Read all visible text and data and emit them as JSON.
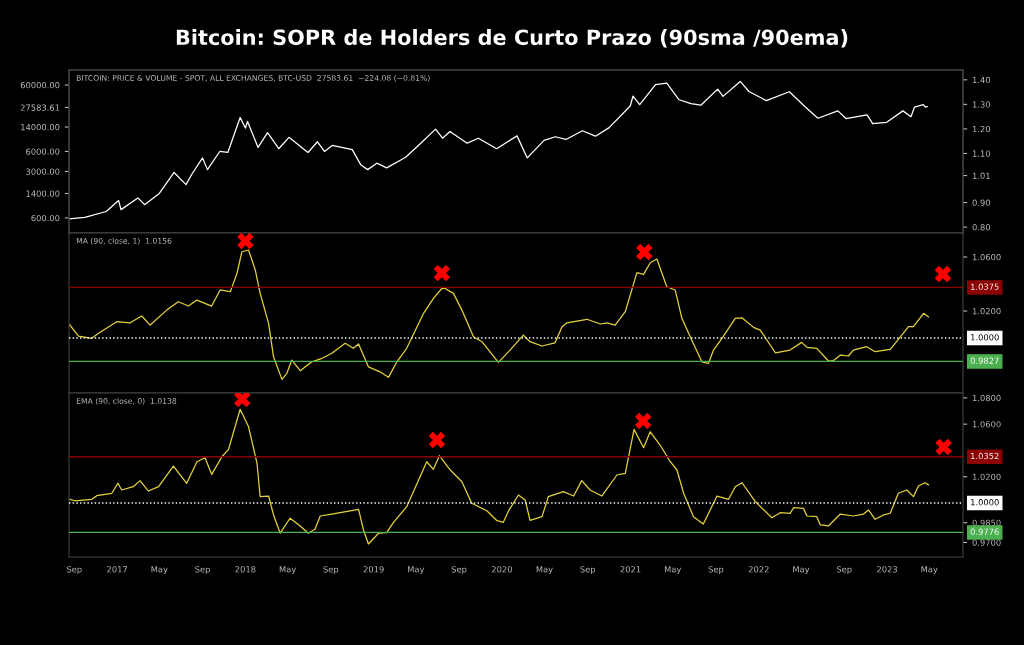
{
  "chart_data": [
    {
      "type": "line",
      "title": "Bitcoin: SOPR de Holders de Curto Prazo (90sma /90ema)",
      "annotations": [
        "BITCOIN: PRICE & VOLUME - SPOT, ALL EXCHANGES, BTC-USD  27583.61  −224.08 (−0.81%)"
      ],
      "log": true,
      "tick_labels": "y",
      "xlim": [
        "2016-08-17",
        "2023-08-05"
      ],
      "ylim": [
        356,
        101000
      ],
      "yticks": [
        {
          "value": 600,
          "label": "600.00"
        },
        {
          "value": 1400,
          "label": "1400.00"
        },
        {
          "value": 3000,
          "label": "3000.00"
        },
        {
          "value": 6000,
          "label": "6000.00"
        },
        {
          "value": 14000,
          "label": "14000.00"
        },
        {
          "value": 27583.61,
          "label": "27583.61"
        },
        {
          "value": 60000,
          "label": "60000.00"
        }
      ],
      "y2lim": [
        0.776,
        1.44
      ],
      "y2ticks": [
        {
          "value": 0.8,
          "label": "0.80"
        },
        {
          "value": 0.9,
          "label": "0.90"
        },
        {
          "value": 1.01,
          "label": "1.01"
        },
        {
          "value": 1.1,
          "label": "1.10"
        },
        {
          "value": 1.2,
          "label": "1.20"
        },
        {
          "value": 1.3,
          "label": "1.30"
        },
        {
          "value": 1.4,
          "label": "1.40"
        }
      ],
      "series": [
        {
          "color": "#ffffff",
          "x": [
            "2016-08-17",
            "2016-10-01",
            "2016-12-01",
            "2017-01-05",
            "2017-01-12",
            "2017-03-01",
            "2017-03-20",
            "2017-05-01",
            "2017-06-12",
            "2017-07-16",
            "2017-08-01",
            "2017-09-01",
            "2017-09-15",
            "2017-10-20",
            "2017-11-12",
            "2017-12-17",
            "2018-01-01",
            "2018-01-07",
            "2018-02-06",
            "2018-03-05",
            "2018-04-06",
            "2018-05-05",
            "2018-06-28",
            "2018-07-25",
            "2018-08-14",
            "2018-09-05",
            "2018-11-01",
            "2018-11-25",
            "2018-12-15",
            "2019-01-10",
            "2019-02-07",
            "2019-04-02",
            "2019-05-15",
            "2019-06-26",
            "2019-07-16",
            "2019-08-06",
            "2019-09-24",
            "2019-10-26",
            "2019-12-17",
            "2020-02-13",
            "2020-03-13",
            "2020-04-30",
            "2020-06-01",
            "2020-07-01",
            "2020-08-17",
            "2020-09-23",
            "2020-11-01",
            "2020-12-31",
            "2021-01-08",
            "2021-01-27",
            "2021-03-13",
            "2021-04-14",
            "2021-05-19",
            "2021-06-22",
            "2021-07-20",
            "2021-09-06",
            "2021-09-21",
            "2021-11-09",
            "2021-12-04",
            "2022-01-22",
            "2022-03-29",
            "2022-05-12",
            "2022-06-18",
            "2022-08-14",
            "2022-09-06",
            "2022-11-05",
            "2022-11-21",
            "2022-12-31",
            "2023-02-15",
            "2023-03-10",
            "2023-03-20",
            "2023-04-14",
            "2023-04-20",
            "2023-04-26"
          ],
          "values": [
            580,
            610,
            750,
            1100,
            800,
            1200,
            950,
            1400,
            2900,
            1900,
            2700,
            4800,
            3200,
            6000,
            5800,
            19500,
            13500,
            17000,
            6900,
            11500,
            6600,
            9800,
            5800,
            8400,
            6000,
            7400,
            6400,
            3800,
            3200,
            4000,
            3400,
            4900,
            8000,
            13000,
            9500,
            12000,
            8000,
            9500,
            6600,
            10300,
            4800,
            8800,
            10000,
            9100,
            12300,
            10200,
            13700,
            29000,
            41000,
            30500,
            61000,
            64000,
            36000,
            31500,
            29800,
            52000,
            40500,
            68000,
            48000,
            35000,
            47500,
            28500,
            19000,
            24500,
            18800,
            21300,
            15800,
            16500,
            24500,
            20000,
            28000,
            30500,
            28000,
            28500
          ]
        }
      ]
    },
    {
      "type": "line",
      "annotations": [
        "MA (90, close, 1)  1.0156"
      ],
      "tick_labels": "y",
      "xlim": [
        "2016-08-17",
        "2023-08-05"
      ],
      "ylim": [
        0.9593,
        1.0778
      ],
      "yticks": [
        {
          "value": 1.02,
          "label": "1.0200"
        },
        {
          "value": 1.06,
          "label": "1.0600"
        }
      ],
      "ref_lines": [
        {
          "axis": "y",
          "value": 1.0375,
          "label": "1.0375",
          "color": "#8b0000",
          "line_style": "solid"
        },
        {
          "axis": "y",
          "value": 1.0,
          "label": "1.0000",
          "color": "#ffffff",
          "line_style": "dotted"
        },
        {
          "axis": "y",
          "value": 0.9827,
          "label": "0.9827",
          "color": "#4caf50",
          "line_style": "solid"
        }
      ],
      "series": [
        {
          "color": "#e3d23a",
          "x": [
            "2016-08-18",
            "2016-09-13",
            "2016-10-21",
            "2016-11-09",
            "2016-12-31",
            "2017-02-07",
            "2017-03-12",
            "2017-04-05",
            "2017-05-22",
            "2017-06-24",
            "2017-07-23",
            "2017-08-16",
            "2017-09-27",
            "2017-10-21",
            "2017-11-19",
            "2017-12-08",
            "2017-12-22",
            "2018-01-10",
            "2018-01-29",
            "2018-02-12",
            "2018-03-08",
            "2018-03-22",
            "2018-04-15",
            "2018-04-29",
            "2018-05-13",
            "2018-06-06",
            "2018-07-09",
            "2018-08-07",
            "2018-09-04",
            "2018-10-12",
            "2018-11-04",
            "2018-11-19",
            "2018-12-17",
            "2019-01-19",
            "2019-02-12",
            "2019-03-08",
            "2019-04-05",
            "2019-05-23",
            "2019-06-20",
            "2019-07-17",
            "2019-08-16",
            "2019-09-09",
            "2019-10-12",
            "2019-11-05",
            "2019-12-22",
            "2020-01-24",
            "2020-03-02",
            "2020-03-21",
            "2020-04-24",
            "2020-05-31",
            "2020-06-20",
            "2020-07-04",
            "2020-08-30",
            "2020-10-07",
            "2020-10-26",
            "2020-11-18",
            "2020-12-17",
            "2021-01-19",
            "2021-02-07",
            "2021-02-26",
            "2021-03-17",
            "2021-04-14",
            "2021-05-08",
            "2021-05-27",
            "2021-06-24",
            "2021-07-23",
            "2021-08-11",
            "2021-08-25",
            "2021-09-18",
            "2021-10-26",
            "2021-11-14",
            "2021-12-17",
            "2022-01-05",
            "2022-02-17",
            "2022-03-31",
            "2022-05-03",
            "2022-05-18",
            "2022-06-15",
            "2022-07-18",
            "2022-08-01",
            "2022-08-21",
            "2022-09-13",
            "2022-09-27",
            "2022-11-04",
            "2022-11-28",
            "2023-01-10",
            "2023-02-02",
            "2023-03-03",
            "2023-03-17",
            "2023-04-15",
            "2023-04-29"
          ],
          "values": [
            1.0101,
            1.0015,
            0.9998,
            1.0035,
            1.0121,
            1.0113,
            1.0163,
            1.0096,
            1.0207,
            1.0269,
            1.0237,
            1.0281,
            1.0237,
            1.0356,
            1.0343,
            1.0479,
            1.0639,
            1.0652,
            1.0504,
            1.0331,
            1.0109,
            0.9861,
            0.9694,
            0.9739,
            0.9837,
            0.9758,
            0.9824,
            0.985,
            0.9887,
            0.9961,
            0.9924,
            0.9956,
            0.9787,
            0.975,
            0.9709,
            0.9824,
            0.9924,
            1.0183,
            1.0294,
            1.0376,
            1.0331,
            1.0207,
            1.001,
            0.9973,
            0.982,
            0.9911,
            1.0022,
            0.9973,
            0.9941,
            0.9965,
            1.0084,
            1.0113,
            1.0139,
            1.0104,
            1.0113,
            1.0096,
            1.0195,
            1.0484,
            1.0472,
            1.0558,
            1.0585,
            1.038,
            1.0356,
            1.0146,
            0.9985,
            0.9824,
            0.9813,
            0.9911,
            0.9998,
            1.0146,
            1.015,
            1.0079,
            1.0059,
            0.9891,
            0.9911,
            0.9968,
            0.9931,
            0.9924,
            0.983,
            0.9832,
            0.9874,
            0.9867,
            0.9911,
            0.9936,
            0.9899,
            0.9916,
            0.999,
            1.0084,
            1.0084,
            1.0183,
            1.0156
          ]
        },
        {
          "type": "scatter",
          "color": "#ff0000",
          "marker": "cross",
          "x": [
            "2018-01-01",
            "2019-07-14",
            "2021-02-09",
            "2023-06-09"
          ],
          "values": [
            1.0719,
            1.0481,
            1.0637,
            1.0474
          ]
        }
      ]
    },
    {
      "type": "line",
      "annotations": [
        "EMA (90, close, 0)  1.0138"
      ],
      "xlim": [
        "2016-08-17",
        "2023-08-05"
      ],
      "ylim": [
        0.9589,
        1.0837
      ],
      "yticks": [
        {
          "value": 0.97,
          "label": "0.9700"
        },
        {
          "value": 0.985,
          "label": "0.9850"
        },
        {
          "value": 1.02,
          "label": "1.0200"
        },
        {
          "value": 1.06,
          "label": "1.0600"
        },
        {
          "value": 1.08,
          "label": "1.0800"
        }
      ],
      "xticks": [
        {
          "value": "2016-09-01",
          "label": "Sep"
        },
        {
          "value": "2017-01-01",
          "label": "2017"
        },
        {
          "value": "2017-05-01",
          "label": "May"
        },
        {
          "value": "2017-09-01",
          "label": "Sep"
        },
        {
          "value": "2018-01-01",
          "label": "2018"
        },
        {
          "value": "2018-05-01",
          "label": "May"
        },
        {
          "value": "2018-09-01",
          "label": "Sep"
        },
        {
          "value": "2019-01-01",
          "label": "2019"
        },
        {
          "value": "2019-05-01",
          "label": "May"
        },
        {
          "value": "2019-09-01",
          "label": "Sep"
        },
        {
          "value": "2020-01-01",
          "label": "2020"
        },
        {
          "value": "2020-05-01",
          "label": "May"
        },
        {
          "value": "2020-09-01",
          "label": "Sep"
        },
        {
          "value": "2021-01-01",
          "label": "2021"
        },
        {
          "value": "2021-05-01",
          "label": "May"
        },
        {
          "value": "2021-09-01",
          "label": "Sep"
        },
        {
          "value": "2022-01-01",
          "label": "2022"
        },
        {
          "value": "2022-05-01",
          "label": "May"
        },
        {
          "value": "2022-09-01",
          "label": "Sep"
        },
        {
          "value": "2023-01-01",
          "label": "2023"
        },
        {
          "value": "2023-05-01",
          "label": "May"
        }
      ],
      "ref_lines": [
        {
          "axis": "y",
          "value": 1.0352,
          "label": "1.0352",
          "color": "#8b0000",
          "line_style": "solid"
        },
        {
          "axis": "y",
          "value": 1.0,
          "label": "1.0000",
          "color": "#ffffff",
          "line_style": "dotted"
        },
        {
          "axis": "y",
          "value": 0.9776,
          "label": "0.9776",
          "color": "#4caf50",
          "line_style": "solid"
        }
      ],
      "series": [
        {
          "color": "#e3d23a",
          "x": [
            "2016-08-18",
            "2016-09-03",
            "2016-10-21",
            "2016-11-04",
            "2016-12-17",
            "2017-01-03",
            "2017-01-14",
            "2017-02-16",
            "2017-03-07",
            "2017-03-31",
            "2017-04-29",
            "2017-06-10",
            "2017-07-18",
            "2017-08-16",
            "2017-09-08",
            "2017-09-27",
            "2017-10-26",
            "2017-11-14",
            "2017-12-17",
            "2018-01-10",
            "2018-02-03",
            "2018-02-12",
            "2018-03-08",
            "2018-03-22",
            "2018-04-10",
            "2018-05-08",
            "2018-06-06",
            "2018-06-29",
            "2018-07-18",
            "2018-08-02",
            "2018-09-04",
            "2018-11-19",
            "2018-12-03",
            "2018-12-17",
            "2019-01-15",
            "2019-02-07",
            "2019-02-26",
            "2019-04-05",
            "2019-05-18",
            "2019-06-01",
            "2019-06-20",
            "2019-07-07",
            "2019-08-07",
            "2019-09-09",
            "2019-10-07",
            "2019-11-19",
            "2019-12-18",
            "2020-01-05",
            "2020-01-20",
            "2020-02-17",
            "2020-03-07",
            "2020-03-21",
            "2020-04-24",
            "2020-05-12",
            "2020-06-24",
            "2020-07-23",
            "2020-08-15",
            "2020-09-08",
            "2020-10-11",
            "2020-11-23",
            "2020-12-17",
            "2021-01-11",
            "2021-02-07",
            "2021-02-26",
            "2021-03-26",
            "2021-04-24",
            "2021-05-13",
            "2021-06-01",
            "2021-06-29",
            "2021-07-27",
            "2021-09-04",
            "2021-10-07",
            "2021-10-26",
            "2021-11-14",
            "2021-12-22",
            "2022-02-07",
            "2022-03-03",
            "2022-03-31",
            "2022-04-10",
            "2022-05-08",
            "2022-05-18",
            "2022-06-15",
            "2022-06-25",
            "2022-07-18",
            "2022-08-21",
            "2022-09-27",
            "2022-10-26",
            "2022-11-09",
            "2022-11-28",
            "2022-12-22",
            "2023-01-10",
            "2023-02-02",
            "2023-02-26",
            "2023-03-17",
            "2023-03-31",
            "2023-04-19",
            "2023-04-29"
          ],
          "values": [
            1.003,
            1.0017,
            1.0028,
            1.0056,
            1.0074,
            1.015,
            1.0099,
            1.0124,
            1.017,
            1.0091,
            1.0124,
            1.0281,
            1.015,
            1.0314,
            1.0344,
            1.0218,
            1.0352,
            1.0408,
            1.0713,
            1.058,
            1.0302,
            1.0048,
            1.0053,
            0.9909,
            0.977,
            0.9884,
            0.9825,
            0.977,
            0.98,
            0.9901,
            0.9916,
            0.9952,
            0.9795,
            0.9688,
            0.977,
            0.9774,
            0.985,
            0.9972,
            1.023,
            1.0314,
            1.0256,
            1.036,
            1.0251,
            1.0162,
            0.9998,
            0.9941,
            0.9865,
            0.9853,
            0.9941,
            1.0061,
            1.0023,
            0.9868,
            0.9896,
            1.0048,
            1.0086,
            1.0053,
            1.017,
            1.0099,
            1.0053,
            1.0213,
            1.0226,
            1.056,
            1.0421,
            1.0542,
            1.0441,
            1.0314,
            1.0251,
            1.0074,
            0.9896,
            0.984,
            1.0053,
            1.0028,
            1.0124,
            1.0154,
            1.001,
            0.9888,
            0.9926,
            0.9921,
            0.9964,
            0.9959,
            0.9901,
            0.9896,
            0.9833,
            0.9825,
            0.9916,
            0.9901,
            0.9916,
            0.9947,
            0.9876,
            0.9909,
            0.9922,
            1.0074,
            1.0099,
            1.0048,
            1.0129,
            1.0154,
            1.0138
          ]
        },
        {
          "type": "scatter",
          "color": "#ff0000",
          "marker": "cross",
          "x": [
            "2017-12-23",
            "2019-06-30",
            "2021-02-06",
            "2023-06-11"
          ],
          "values": [
            1.0791,
            1.0479,
            1.0624,
            1.0426
          ]
        }
      ]
    }
  ]
}
